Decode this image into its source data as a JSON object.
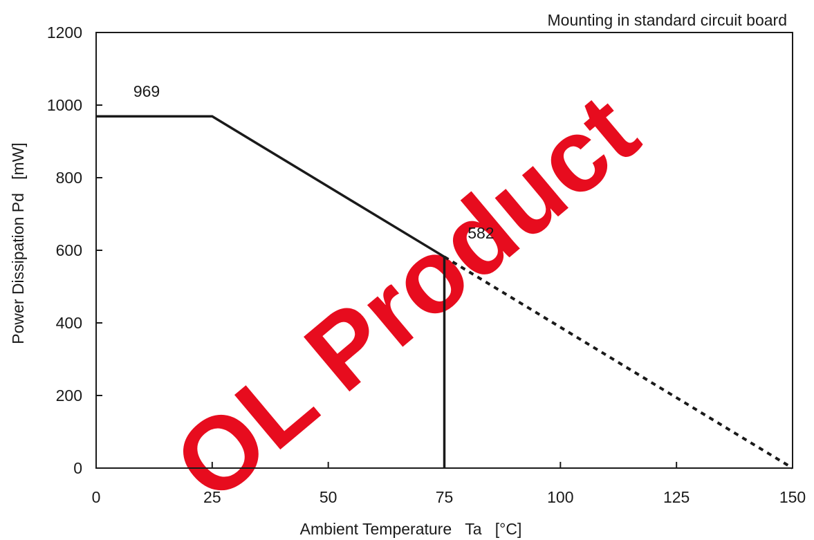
{
  "chart_data": {
    "type": "line",
    "title": "",
    "subtitle": "Mounting in standard circuit board",
    "xlabel": "Ambient Temperature   Ta   [°C]",
    "ylabel": "Power Dissipation Pd   [mW]",
    "xlim": [
      0,
      150
    ],
    "ylim": [
      0,
      1200
    ],
    "xticks": [
      0,
      25,
      50,
      75,
      100,
      125,
      150
    ],
    "yticks": [
      0,
      200,
      400,
      600,
      800,
      1000,
      1200
    ],
    "grid": false,
    "series": [
      {
        "style": "solid",
        "color": "#1a1a1a",
        "x": [
          0,
          25,
          75,
          75
        ],
        "y": [
          969,
          969,
          582,
          0
        ]
      },
      {
        "style": "dotted",
        "color": "#1a1a1a",
        "x": [
          75,
          150
        ],
        "y": [
          582,
          0
        ]
      }
    ],
    "annotations": [
      {
        "text": "969",
        "x": 4,
        "y": 1000
      },
      {
        "text": "582",
        "x": 76,
        "y": 610
      }
    ]
  },
  "watermark": {
    "text": "OL Product",
    "color": "#e60012"
  }
}
